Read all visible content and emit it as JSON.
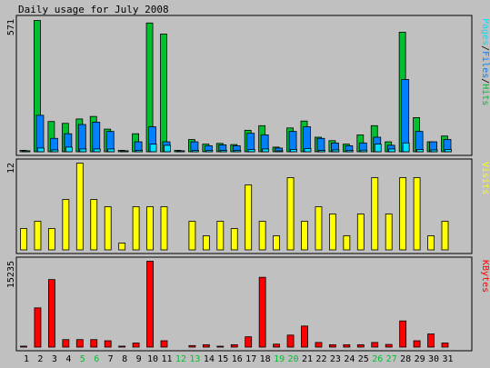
{
  "title": "Daily usage for July 2008",
  "colors": {
    "background": "#c0c0c0",
    "panel_border": "#000000",
    "hits": "#00c030",
    "files": "#0080ff",
    "pages": "#00e0ff",
    "visits": "#ffff00",
    "kbytes": "#ff0000",
    "weekend_label": "#00c030",
    "weekday_label": "#000000"
  },
  "chart_data": [
    {
      "type": "bar",
      "name": "hits-files-pages",
      "ymax_label": "571",
      "ylim": [
        0,
        571
      ],
      "legend": [
        "Pages",
        "Files",
        "Hits"
      ],
      "categories": [
        "1",
        "2",
        "3",
        "4",
        "5",
        "6",
        "7",
        "8",
        "9",
        "10",
        "11",
        "12",
        "13",
        "14",
        "15",
        "16",
        "17",
        "18",
        "19",
        "20",
        "21",
        "22",
        "23",
        "24",
        "25",
        "26",
        "27",
        "28",
        "29",
        "30",
        "31"
      ],
      "series": [
        {
          "name": "Hits",
          "values": [
            8,
            571,
            133,
            125,
            144,
            155,
            100,
            8,
            80,
            560,
            512,
            8,
            55,
            35,
            38,
            33,
            95,
            115,
            22,
            105,
            135,
            65,
            50,
            35,
            75,
            115,
            45,
            520,
            150,
            45,
            70
          ]
        },
        {
          "name": "Files",
          "values": [
            5,
            160,
            60,
            80,
            120,
            130,
            90,
            5,
            45,
            110,
            45,
            5,
            45,
            28,
            32,
            28,
            82,
            75,
            18,
            90,
            110,
            60,
            40,
            28,
            40,
            65,
            30,
            315,
            90,
            45,
            55
          ]
        },
        {
          "name": "Pages",
          "values": [
            3,
            18,
            10,
            22,
            14,
            14,
            14,
            3,
            8,
            35,
            30,
            3,
            8,
            8,
            8,
            8,
            12,
            14,
            5,
            12,
            16,
            8,
            10,
            8,
            9,
            35,
            14,
            40,
            12,
            10,
            12
          ]
        }
      ]
    },
    {
      "type": "bar",
      "name": "visits",
      "ymax_label": "12",
      "ylim": [
        0,
        12
      ],
      "legend": [
        "Visits"
      ],
      "categories": [
        "1",
        "2",
        "3",
        "4",
        "5",
        "6",
        "7",
        "8",
        "9",
        "10",
        "11",
        "12",
        "13",
        "14",
        "15",
        "16",
        "17",
        "18",
        "19",
        "20",
        "21",
        "22",
        "23",
        "24",
        "25",
        "26",
        "27",
        "28",
        "29",
        "30",
        "31"
      ],
      "series": [
        {
          "name": "Visits",
          "values": [
            3,
            4,
            3,
            7,
            12,
            7,
            6,
            1,
            6,
            6,
            6,
            0,
            4,
            2,
            4,
            3,
            9,
            4,
            2,
            10,
            4,
            6,
            5,
            2,
            5,
            10,
            5,
            10,
            10,
            2,
            4
          ]
        }
      ]
    },
    {
      "type": "bar",
      "name": "kbytes",
      "ymax_label": "15235",
      "ylim": [
        0,
        15235
      ],
      "legend": [
        "KBytes"
      ],
      "categories": [
        "1",
        "2",
        "3",
        "4",
        "5",
        "6",
        "7",
        "8",
        "9",
        "10",
        "11",
        "12",
        "13",
        "14",
        "15",
        "16",
        "17",
        "18",
        "19",
        "20",
        "21",
        "22",
        "23",
        "24",
        "25",
        "26",
        "27",
        "28",
        "29",
        "30",
        "31"
      ],
      "series": [
        {
          "name": "KBytes",
          "values": [
            250,
            7000,
            12000,
            1400,
            1400,
            1400,
            1200,
            250,
            800,
            15235,
            1200,
            0,
            350,
            500,
            200,
            500,
            1900,
            12400,
            600,
            2200,
            3800,
            900,
            500,
            500,
            500,
            900,
            550,
            4700,
            1200,
            2400,
            800
          ]
        }
      ]
    }
  ],
  "x_labels": {
    "values": [
      "1",
      "2",
      "3",
      "4",
      "5",
      "6",
      "7",
      "8",
      "9",
      "10",
      "11",
      "12",
      "13",
      "14",
      "15",
      "16",
      "17",
      "18",
      "19",
      "20",
      "21",
      "22",
      "23",
      "24",
      "25",
      "26",
      "27",
      "28",
      "29",
      "30",
      "31"
    ],
    "weekend": [
      false,
      false,
      false,
      false,
      true,
      true,
      false,
      false,
      false,
      false,
      false,
      true,
      true,
      false,
      false,
      false,
      false,
      false,
      true,
      true,
      false,
      false,
      false,
      false,
      false,
      true,
      true,
      false,
      false,
      false,
      false
    ]
  }
}
